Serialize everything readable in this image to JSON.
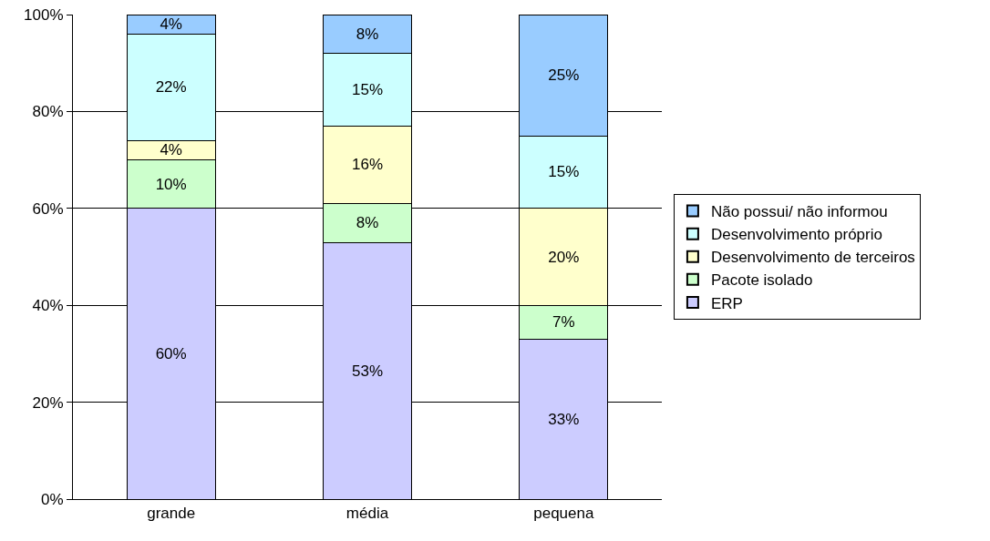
{
  "chart_data": {
    "type": "bar",
    "stacked": true,
    "categories": [
      "grande",
      "média",
      "pequena"
    ],
    "series": [
      {
        "name": "ERP",
        "color": "#ccccff",
        "values": [
          60,
          53,
          33
        ],
        "value_labels": [
          "60%",
          "53%",
          "33%"
        ]
      },
      {
        "name": "Pacote isolado",
        "color": "#ccffcc",
        "values": [
          10,
          8,
          7
        ],
        "value_labels": [
          "10%",
          "8%",
          "7%"
        ]
      },
      {
        "name": "Desenvolvimento de terceiros",
        "color": "#ffffcc",
        "values": [
          4,
          16,
          20
        ],
        "value_labels": [
          "4%",
          "16%",
          "20%"
        ]
      },
      {
        "name": "Desenvolvimento próprio",
        "color": "#ccffff",
        "values": [
          22,
          15,
          15
        ],
        "value_labels": [
          "22%",
          "15%",
          "15%"
        ]
      },
      {
        "name": "Não possui/ não informou",
        "color": "#99ccff",
        "values": [
          4,
          8,
          25
        ],
        "value_labels": [
          "4%",
          "8%",
          "25%"
        ]
      }
    ],
    "ylim": [
      0,
      100
    ],
    "yticks": [
      {
        "value": 0,
        "label": "0%"
      },
      {
        "value": 20,
        "label": "20%"
      },
      {
        "value": 40,
        "label": "40%"
      },
      {
        "value": 60,
        "label": "60%"
      },
      {
        "value": 80,
        "label": "80%"
      },
      {
        "value": 100,
        "label": "100%"
      }
    ],
    "grid": "y",
    "legend": "right"
  }
}
